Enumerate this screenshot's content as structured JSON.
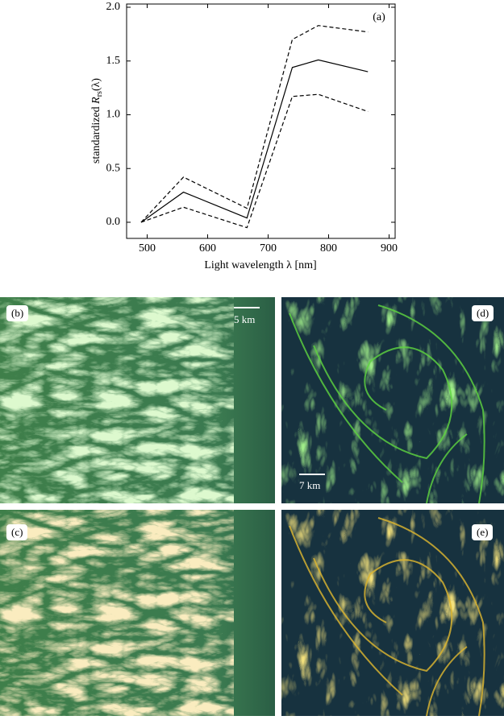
{
  "chart_data": {
    "type": "line",
    "ylabel": {
      "prefix": "standardized ",
      "symbol": "R",
      "subscript": "rs",
      "suffix": "(λ)"
    },
    "xlabel": "Light wavelength  λ [nm]",
    "annotation": "(a)",
    "x": [
      490,
      560,
      665,
      740,
      783,
      865
    ],
    "series": [
      {
        "color": "#000000",
        "dash": false,
        "values": [
          0,
          0.28,
          0.04,
          1.44,
          1.51,
          1.4
        ]
      },
      {
        "color": "#000000",
        "dash": true,
        "values": [
          0,
          0.42,
          0.13,
          1.7,
          1.83,
          1.77
        ]
      },
      {
        "color": "#000000",
        "dash": true,
        "values": [
          0,
          0.14,
          -0.05,
          1.17,
          1.19,
          1.03
        ]
      }
    ],
    "xlim": [
      466,
      910
    ],
    "ylim": [
      -0.15,
      2.03
    ],
    "xticks": [
      500,
      600,
      700,
      800,
      900
    ],
    "yticks": [
      {
        "value": 0,
        "label": "0.0"
      },
      {
        "value": 0.5,
        "label": "0.5"
      },
      {
        "value": 1,
        "label": "1.0"
      },
      {
        "value": 1.5,
        "label": "1.5"
      },
      {
        "value": 2,
        "label": "2.0"
      }
    ],
    "grid": false
  },
  "panels": [
    {
      "label": "(b)",
      "scale_bar": "5 km"
    },
    {
      "label": "(c)"
    },
    {
      "label": "(d)",
      "scale_bar": "7 km"
    },
    {
      "label": "(e)"
    }
  ]
}
